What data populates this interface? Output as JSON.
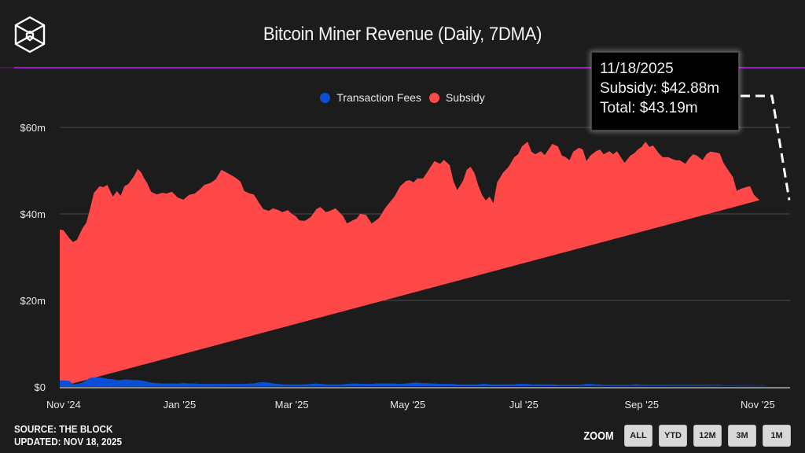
{
  "header": {
    "title": "Bitcoin Miner Revenue (Daily, 7DMA)",
    "logo": "the-block-cube-logo"
  },
  "legend": [
    {
      "label": "Transaction Fees",
      "color": "#0a4fd6"
    },
    {
      "label": "Subsidy",
      "color": "#ff4949"
    }
  ],
  "tooltip": {
    "date": "11/18/2025",
    "subsidy": "Subsidy: $42.88m",
    "total": "Total: $43.19m"
  },
  "footer": {
    "source": "SOURCE: THE BLOCK",
    "updated": "UPDATED: NOV 18, 2025"
  },
  "zoom": {
    "label": "ZOOM",
    "buttons": [
      "ALL",
      "YTD",
      "12M",
      "3M",
      "1M"
    ]
  },
  "chart_data": {
    "type": "area",
    "stacked": true,
    "title": "Bitcoin Miner Revenue (Daily, 7DMA)",
    "xlabel": "",
    "ylabel": "",
    "x_range": [
      "2024-10-30",
      "2025-11-18"
    ],
    "ylim": [
      0,
      68
    ],
    "y_ticks": [
      0,
      20,
      40,
      60
    ],
    "y_tick_labels": [
      "$0",
      "$20m",
      "$40m",
      "$60m"
    ],
    "x_ticks": [
      "2024-11-01",
      "2025-01-01",
      "2025-03-01",
      "2025-05-01",
      "2025-07-01",
      "2025-09-01",
      "2025-11-01"
    ],
    "x_tick_labels": [
      "Nov '24",
      "Jan '25",
      "Mar '25",
      "May '25",
      "Jul '25",
      "Sep '25",
      "Nov '25"
    ],
    "grid": true,
    "legend_position": "top-center",
    "days_from_start": [
      0,
      2,
      5,
      7,
      9,
      12,
      14,
      16,
      18,
      21,
      23,
      25,
      27,
      28,
      30,
      32,
      34,
      36,
      39,
      41,
      43,
      44,
      46,
      48,
      51,
      54,
      56,
      59,
      62,
      65,
      68,
      71,
      74,
      76,
      79,
      82,
      85,
      88,
      92,
      95,
      97,
      100,
      102,
      104,
      107,
      110,
      112,
      115,
      117,
      120,
      122,
      124,
      126,
      129,
      132,
      135,
      137,
      140,
      142,
      145,
      147,
      149,
      151,
      154,
      156,
      158,
      161,
      164,
      166,
      168,
      171,
      173,
      176,
      179,
      182,
      184,
      186,
      188,
      191,
      193,
      195,
      197,
      200,
      202,
      205,
      207,
      209,
      212,
      214,
      216,
      218,
      220,
      222,
      224,
      226,
      228,
      230,
      233,
      236,
      239,
      241,
      243,
      246,
      248,
      250,
      253,
      255,
      257,
      259,
      262,
      264,
      266,
      268,
      270,
      273,
      275,
      277,
      279,
      282,
      284,
      286,
      289,
      291,
      293,
      295,
      297,
      300,
      302,
      304,
      306,
      308,
      310,
      312,
      315,
      317,
      320,
      322,
      324,
      326,
      329,
      331,
      333,
      335,
      338,
      340,
      342,
      345,
      347,
      349,
      351,
      354,
      356,
      358,
      361,
      363,
      365,
      368,
      370,
      372,
      374,
      377,
      379,
      381,
      384
    ],
    "series": [
      {
        "name": "Subsidy",
        "color": "#ff4949",
        "values_total_top": [
          36.4,
          36.2,
          34.4,
          33.5,
          34.0,
          36.7,
          38.0,
          41.3,
          44.9,
          46.4,
          46.2,
          46.7,
          44.9,
          44.0,
          45.3,
          44.2,
          46.4,
          46.9,
          48.7,
          50.4,
          49.5,
          48.5,
          47.1,
          45.1,
          44.5,
          44.9,
          44.7,
          45.1,
          43.8,
          43.3,
          44.4,
          44.7,
          45.8,
          46.7,
          47.1,
          48.0,
          50.2,
          49.5,
          48.5,
          47.5,
          45.3,
          44.7,
          44.5,
          43.1,
          41.1,
          40.7,
          41.3,
          40.9,
          40.4,
          40.9,
          40.0,
          39.5,
          38.5,
          38.4,
          39.3,
          41.1,
          41.6,
          40.4,
          40.7,
          41.3,
          40.4,
          39.5,
          37.8,
          38.5,
          38.9,
          40.0,
          39.8,
          37.8,
          38.4,
          39.1,
          41.3,
          42.4,
          44.0,
          46.4,
          47.6,
          47.8,
          47.3,
          48.2,
          48.2,
          49.5,
          50.9,
          52.2,
          51.6,
          52.5,
          51.3,
          47.6,
          45.5,
          47.6,
          50.2,
          50.9,
          49.5,
          46.7,
          44.4,
          43.1,
          44.0,
          42.5,
          47.3,
          49.5,
          50.9,
          53.1,
          53.8,
          55.6,
          56.7,
          54.4,
          53.8,
          54.5,
          53.6,
          54.9,
          56.2,
          55.6,
          53.5,
          53.1,
          52.4,
          54.4,
          55.3,
          54.9,
          52.2,
          53.5,
          54.5,
          54.9,
          53.8,
          54.5,
          53.8,
          54.5,
          53.1,
          51.8,
          53.5,
          54.0,
          54.9,
          55.5,
          56.7,
          55.5,
          55.8,
          54.0,
          53.1,
          53.1,
          52.7,
          52.4,
          52.4,
          51.6,
          52.9,
          53.8,
          53.5,
          52.4,
          53.8,
          54.4,
          54.2,
          54.0,
          51.8,
          50.4,
          48.5,
          45.3,
          45.8,
          46.2,
          46.4,
          44.4,
          43.19
        ]
      },
      {
        "name": "Transaction Fees",
        "color": "#0a4fd6",
        "values": [
          1.5,
          1.5,
          1.4,
          0.6,
          0.7,
          1.0,
          1.6,
          2.1,
          2.2,
          2.2,
          2.1,
          1.9,
          1.8,
          1.8,
          1.6,
          1.6,
          1.7,
          1.7,
          1.6,
          1.6,
          1.5,
          1.4,
          1.2,
          1.0,
          0.9,
          0.8,
          0.8,
          0.8,
          0.8,
          0.9,
          0.8,
          0.8,
          0.7,
          0.7,
          0.7,
          0.7,
          0.7,
          0.7,
          0.7,
          0.7,
          0.7,
          0.8,
          0.8,
          1.0,
          1.1,
          1.0,
          0.8,
          0.7,
          0.6,
          0.6,
          0.6,
          0.6,
          0.6,
          0.6,
          0.7,
          0.8,
          0.7,
          0.6,
          0.6,
          0.6,
          0.6,
          0.6,
          0.7,
          0.8,
          0.8,
          0.7,
          0.7,
          0.7,
          0.8,
          0.8,
          0.8,
          0.8,
          0.8,
          0.7,
          0.8,
          0.9,
          1.0,
          1.0,
          0.9,
          0.9,
          0.8,
          0.8,
          0.7,
          0.7,
          0.7,
          0.7,
          0.6,
          0.6,
          0.6,
          0.6,
          0.6,
          0.6,
          0.7,
          0.7,
          0.6,
          0.6,
          0.6,
          0.6,
          0.6,
          0.6,
          0.7,
          0.7,
          0.7,
          0.6,
          0.6,
          0.6,
          0.6,
          0.6,
          0.6,
          0.5,
          0.5,
          0.5,
          0.5,
          0.5,
          0.5,
          0.6,
          0.7,
          0.7,
          0.6,
          0.6,
          0.5,
          0.5,
          0.5,
          0.5,
          0.5,
          0.5,
          0.5,
          0.6,
          0.6,
          0.5,
          0.5,
          0.5,
          0.5,
          0.5,
          0.5,
          0.5,
          0.5,
          0.5,
          0.5,
          0.5,
          0.5,
          0.5,
          0.5,
          0.5,
          0.5,
          0.5,
          0.5,
          0.5,
          0.4,
          0.4,
          0.4,
          0.4,
          0.4,
          0.4,
          0.4,
          0.4,
          0.4,
          0.4,
          0.31
        ]
      }
    ],
    "annotation": {
      "date": "2025-11-18",
      "subsidy": 42.88,
      "total": 43.19
    }
  }
}
